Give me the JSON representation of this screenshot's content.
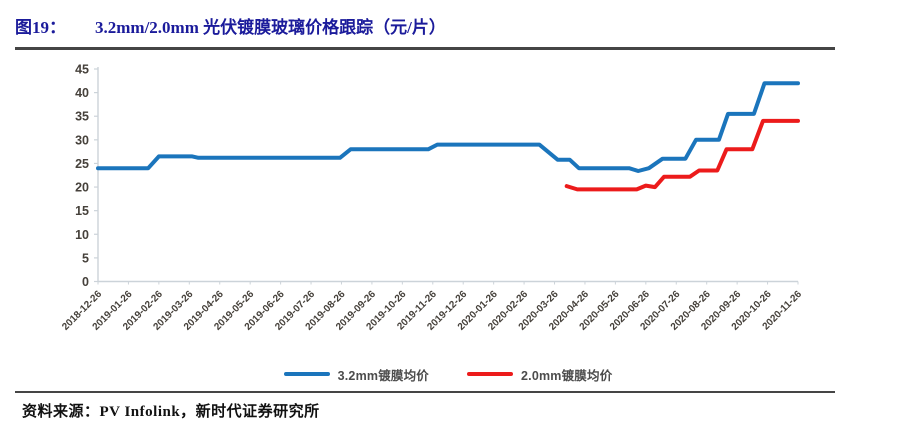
{
  "figure": {
    "label": "图19：",
    "title": "3.2mm/2.0mm 光伏镀膜玻璃价格跟踪（元/片）"
  },
  "source_line": "资料来源：PV Infolink，新时代证券研究所",
  "colors": {
    "title_blue": "#1b1b9b",
    "series_blue": "#1b75bc",
    "series_red": "#ec1b1b",
    "axis_line": "#ccd3d9",
    "axis_label": "#46413b",
    "divider": "#454545"
  },
  "chart_data": {
    "type": "line",
    "title": "3.2mm/2.0mm 光伏镀膜玻璃价格跟踪（元/片）",
    "xlabel": "",
    "ylabel": "",
    "ylim": [
      0,
      45
    ],
    "y_ticks": [
      0,
      5,
      10,
      15,
      20,
      25,
      30,
      35,
      40,
      45
    ],
    "grid": false,
    "legend_position": "bottom",
    "x_note": "x values are fractional month indices; 0 = 2018-12-26, 23 = 2020-11-26",
    "x_tick_labels": [
      "2018-12-26",
      "2019-01-26",
      "2019-02-26",
      "2019-03-26",
      "2019-04-26",
      "2019-05-26",
      "2019-06-26",
      "2019-07-26",
      "2019-08-26",
      "2019-09-26",
      "2019-10-26",
      "2019-11-26",
      "2019-12-26",
      "2020-01-26",
      "2020-02-26",
      "2020-03-26",
      "2020-04-26",
      "2020-05-26",
      "2020-06-26",
      "2020-07-26",
      "2020-08-26",
      "2020-09-26",
      "2020-10-26",
      "2020-11-26"
    ],
    "series": [
      {
        "name": "3.2mm镀膜均价",
        "color": "#1b75bc",
        "points": [
          [
            0,
            24
          ],
          [
            1.65,
            24
          ],
          [
            2.0,
            26.5
          ],
          [
            3.1,
            26.5
          ],
          [
            3.3,
            26.2
          ],
          [
            7.95,
            26.2
          ],
          [
            8.3,
            28
          ],
          [
            10.85,
            28
          ],
          [
            11.15,
            29
          ],
          [
            14.5,
            29
          ],
          [
            15.1,
            25.8
          ],
          [
            15.5,
            25.8
          ],
          [
            15.8,
            24
          ],
          [
            17.45,
            24
          ],
          [
            17.75,
            23.4
          ],
          [
            18.1,
            24
          ],
          [
            18.55,
            26
          ],
          [
            19.3,
            26
          ],
          [
            19.65,
            30
          ],
          [
            20.4,
            30
          ],
          [
            20.7,
            35.5
          ],
          [
            21.55,
            35.5
          ],
          [
            21.9,
            42
          ],
          [
            23,
            42
          ]
        ]
      },
      {
        "name": "2.0mm镀膜均价",
        "color": "#ec1b1b",
        "points": [
          [
            15.4,
            20.2
          ],
          [
            15.75,
            19.5
          ],
          [
            17.7,
            19.5
          ],
          [
            18.0,
            20.3
          ],
          [
            18.3,
            20.0
          ],
          [
            18.6,
            22.2
          ],
          [
            19.45,
            22.2
          ],
          [
            19.75,
            23.5
          ],
          [
            20.35,
            23.5
          ],
          [
            20.65,
            28
          ],
          [
            21.5,
            28
          ],
          [
            21.85,
            34
          ],
          [
            23,
            34
          ]
        ]
      }
    ]
  }
}
